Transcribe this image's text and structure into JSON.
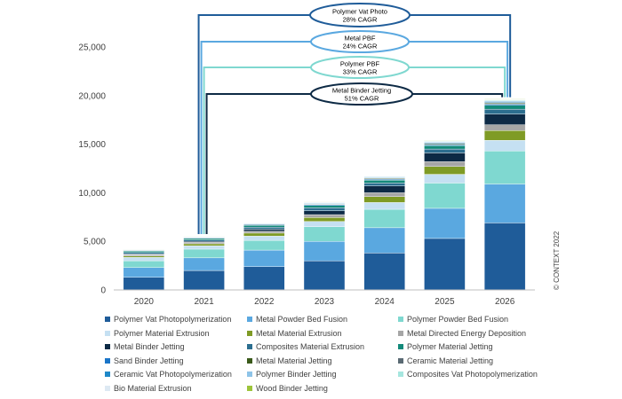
{
  "chart_data": {
    "type": "bar",
    "stacked": true,
    "categories": [
      "2020",
      "2021",
      "2022",
      "2023",
      "2024",
      "2025",
      "2026"
    ],
    "ylim": [
      0,
      25000
    ],
    "yticks": [
      "0",
      "5,000",
      "10,000",
      "15,000",
      "20,000",
      "25,000"
    ],
    "ytick_values": [
      0,
      5000,
      10000,
      15000,
      20000,
      25000
    ],
    "series": [
      {
        "name": "Polymer Vat Photopolymerization",
        "color": "#1f5c99",
        "values": [
          1300,
          2000,
          2400,
          3000,
          3800,
          5300,
          6900
        ]
      },
      {
        "name": "Metal Powder Bed Fusion",
        "color": "#5aa8e0",
        "values": [
          1000,
          1300,
          1700,
          2000,
          2600,
          3100,
          4000
        ]
      },
      {
        "name": "Polymer Powder Bed Fusion",
        "color": "#7fd8d0",
        "values": [
          700,
          900,
          1000,
          1500,
          1900,
          2600,
          3400
        ]
      },
      {
        "name": "Polymer Material Extrusion",
        "color": "#c5e0f2",
        "values": [
          350,
          350,
          450,
          550,
          700,
          900,
          1100
        ]
      },
      {
        "name": "Metal Material Extrusion",
        "color": "#7f9b25",
        "values": [
          150,
          200,
          300,
          400,
          600,
          800,
          1000
        ]
      },
      {
        "name": "Metal Directed Energy Deposition",
        "color": "#a6a6a6",
        "values": [
          150,
          150,
          200,
          300,
          400,
          500,
          600
        ]
      },
      {
        "name": "Metal Binder Jetting",
        "color": "#0d2a45",
        "values": [
          50,
          100,
          200,
          400,
          700,
          900,
          1100
        ]
      },
      {
        "name": "Composites Material Extrusion",
        "color": "#2c6e8f",
        "values": [
          150,
          150,
          200,
          300,
          300,
          400,
          500
        ]
      },
      {
        "name": "Polymer Material Jetting",
        "color": "#138a7a",
        "values": [
          150,
          150,
          200,
          250,
          300,
          350,
          400
        ]
      },
      {
        "name": "Sand Binder Jetting",
        "color": "#1a75c8",
        "values": [
          50,
          60,
          70,
          80,
          90,
          100,
          120
        ]
      },
      {
        "name": "Metal Material Jetting",
        "color": "#3a5a1a",
        "values": [
          30,
          40,
          50,
          60,
          70,
          80,
          100
        ]
      },
      {
        "name": "Ceramic Material Jetting",
        "color": "#5a6a73",
        "values": [
          20,
          30,
          30,
          40,
          50,
          60,
          70
        ]
      },
      {
        "name": "Ceramic Vat Photopolymerization",
        "color": "#1f88c8",
        "values": [
          30,
          40,
          50,
          60,
          70,
          80,
          100
        ]
      },
      {
        "name": "Polymer Binder Jetting",
        "color": "#8ec4e8",
        "values": [
          20,
          30,
          40,
          50,
          60,
          70,
          80
        ]
      },
      {
        "name": "Composites Vat Photopolymerization",
        "color": "#a6e6df",
        "values": [
          20,
          30,
          40,
          40,
          50,
          60,
          70
        ]
      },
      {
        "name": "Bio Material Extrusion",
        "color": "#dde9f3",
        "values": [
          10,
          20,
          20,
          30,
          40,
          50,
          60
        ]
      },
      {
        "name": "Wood Binder Jetting",
        "color": "#9dc43a",
        "values": [
          10,
          10,
          20,
          20,
          30,
          40,
          50
        ]
      }
    ],
    "callouts": [
      {
        "label": "Polymer Vat Photo",
        "sub": "28% CAGR",
        "color": "#1f5c99"
      },
      {
        "label": "Metal PBF",
        "sub": "24% CAGR",
        "color": "#5aa8e0"
      },
      {
        "label": "Polymer PBF",
        "sub": "33% CAGR",
        "color": "#7fd8d0"
      },
      {
        "label": "Metal Binder Jetting",
        "sub": "51% CAGR",
        "color": "#0d2a45"
      }
    ],
    "copyright": "© CONTEXT 2022",
    "grid": false,
    "legend_position": "bottom"
  }
}
